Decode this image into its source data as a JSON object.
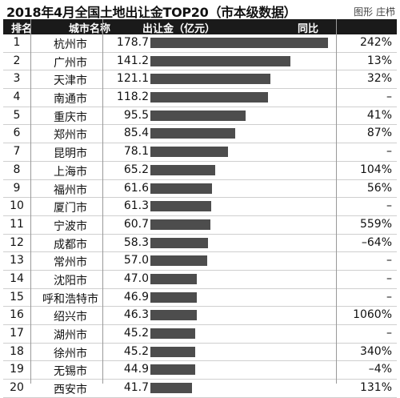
{
  "credit": "图形  庄栉",
  "chart_data": {
    "type": "bar",
    "title": "2018年4月全国土地出让金TOP20（市本级数据）",
    "columns": [
      "排名",
      "城市名称",
      "出让金（亿元）",
      "同比"
    ],
    "ranks": [
      "1",
      "2",
      "3",
      "4",
      "5",
      "6",
      "7",
      "8",
      "9",
      "10",
      "11",
      "12",
      "13",
      "14",
      "15",
      "16",
      "17",
      "18",
      "19",
      "20"
    ],
    "categories": [
      "杭州市",
      "广州市",
      "天津市",
      "南通市",
      "重庆市",
      "郑州市",
      "昆明市",
      "上海市",
      "福州市",
      "厦门市",
      "宁波市",
      "成都市",
      "常州市",
      "沈阳市",
      "呼和浩特市",
      "绍兴市",
      "湖州市",
      "徐州市",
      "无锡市",
      "西安市"
    ],
    "values": [
      178.7,
      141.2,
      121.1,
      118.2,
      95.5,
      85.4,
      78.1,
      65.2,
      61.6,
      61.3,
      60.7,
      58.3,
      57.0,
      47.0,
      46.9,
      46.3,
      45.2,
      45.2,
      44.9,
      41.7
    ],
    "value_labels": [
      "178.7",
      "141.2",
      "121.1",
      "118.2",
      "95.5",
      "85.4",
      "78.1",
      "65.2",
      "61.6",
      "61.3",
      "60.7",
      "58.3",
      "57.0",
      "47.0",
      "46.9",
      "46.3",
      "45.2",
      "45.2",
      "44.9",
      "41.7"
    ],
    "yoy": [
      "242%",
      "13%",
      "32%",
      "–",
      "41%",
      "87%",
      "–",
      "104%",
      "56%",
      "–",
      "559%",
      "–64%",
      "–",
      "–",
      "–",
      "1060%",
      "–",
      "340%",
      "–4%",
      "131%"
    ],
    "xlim": [
      0,
      178.7
    ]
  }
}
